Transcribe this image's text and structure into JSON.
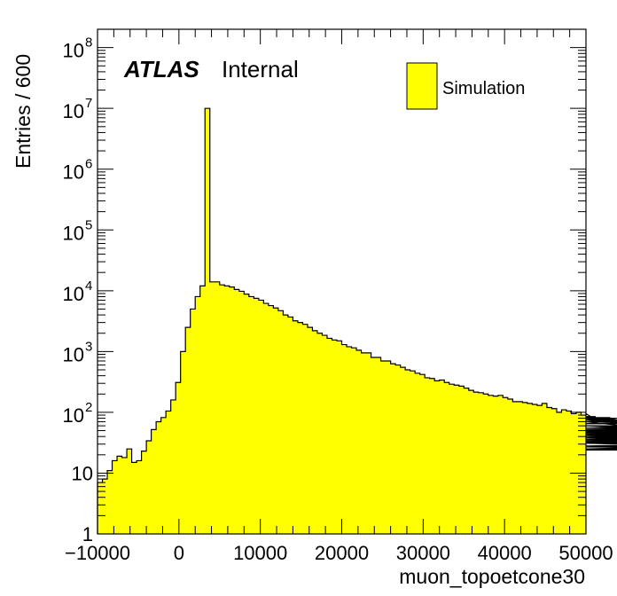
{
  "chart_data": {
    "type": "bar",
    "histogram": true,
    "xlabel": "muon_topoetcone30",
    "ylabel": "Entries / 600",
    "xlim": [
      -10000,
      50000
    ],
    "ylim": [
      1,
      200000000
    ],
    "yscale": "log",
    "bin_width": 600,
    "x_ticks": [
      -10000,
      0,
      10000,
      20000,
      30000,
      40000,
      50000
    ],
    "x_tick_labels": [
      "−10000",
      "0",
      "10000",
      "20000",
      "30000",
      "40000",
      "50000"
    ],
    "y_ticks": [
      {
        "value": 1,
        "base": "1",
        "exp": ""
      },
      {
        "value": 10,
        "base": "10",
        "exp": ""
      },
      {
        "value": 100,
        "base": "10",
        "exp": "2"
      },
      {
        "value": 1000,
        "base": "10",
        "exp": "3"
      },
      {
        "value": 10000,
        "base": "10",
        "exp": "4"
      },
      {
        "value": 100000,
        "base": "10",
        "exp": "5"
      },
      {
        "value": 1000000,
        "base": "10",
        "exp": "6"
      },
      {
        "value": 10000000,
        "base": "10",
        "exp": "7"
      },
      {
        "value": 100000000,
        "base": "10",
        "exp": "8"
      }
    ],
    "series": [
      {
        "name": "Simulation",
        "fill": "#ffff00",
        "values": [
          7,
          8,
          11,
          16,
          19,
          18,
          25,
          15,
          16,
          23,
          34,
          52,
          70,
          82,
          105,
          160,
          310,
          1000,
          2500,
          5000,
          8000,
          12000,
          10000000,
          14000,
          14000,
          12500,
          12000,
          11500,
          10500,
          9800,
          8800,
          8000,
          7500,
          7000,
          6200,
          5700,
          5200,
          4700,
          4000,
          3700,
          3200,
          3000,
          2800,
          2500,
          2200,
          2000,
          1850,
          1650,
          1550,
          1500,
          1300,
          1200,
          1150,
          1050,
          950,
          950,
          800,
          800,
          700,
          700,
          630,
          600,
          550,
          500,
          480,
          440,
          420,
          370,
          360,
          330,
          340,
          310,
          290,
          280,
          270,
          250,
          230,
          215,
          210,
          200,
          190,
          185,
          190,
          175,
          165,
          150,
          150,
          145,
          140,
          135,
          130,
          140,
          120,
          115,
          100,
          110,
          105,
          95,
          100,
          90,
          95,
          85,
          85,
          80,
          80,
          82,
          76,
          80,
          70,
          75,
          65,
          70,
          55,
          55,
          60,
          55,
          52,
          50,
          52,
          50,
          48,
          50,
          50,
          45,
          46,
          44,
          45,
          43,
          45,
          40,
          38,
          50,
          40,
          38,
          42,
          40,
          43,
          45,
          40,
          43,
          36,
          38,
          35,
          32,
          42,
          34,
          31,
          25,
          32,
          27,
          31,
          28,
          32,
          34,
          36,
          28,
          33,
          38,
          25,
          25,
          27,
          28,
          24,
          24,
          27,
          25
        ]
      }
    ],
    "legend": {
      "position": "top-right",
      "entries": [
        "Simulation"
      ]
    },
    "grid": false,
    "annotations": {
      "atlas": "ATLAS",
      "internal": "Internal"
    }
  }
}
